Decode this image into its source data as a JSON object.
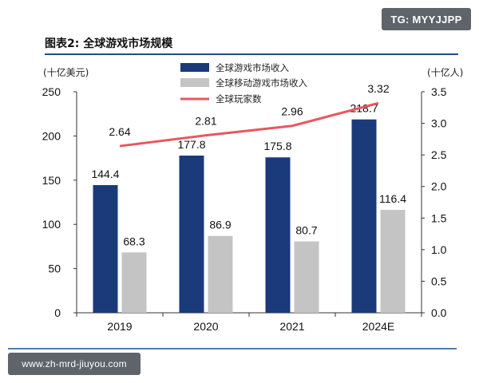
{
  "badge": "TG: MYYJJPP",
  "figure_title": "图表2:  全球游戏市场规模",
  "footer_url": "www.zh-mrd-jiuyou.com",
  "colors": {
    "market_bar": "#1b3a7a",
    "mobile_bar": "#c4c4c4",
    "players_line": "#e8575f",
    "title_rule": "#1f4e8c"
  },
  "chart_data": {
    "type": "bar",
    "title": "全球游戏市场规模",
    "categories": [
      "2019",
      "2020",
      "2021",
      "2024E"
    ],
    "y_left": {
      "unit": "(十亿美元)",
      "ylim": [
        0,
        250
      ],
      "ticks": [
        "0",
        "50",
        "100",
        "150",
        "200",
        "250"
      ]
    },
    "y_right": {
      "unit": "(十亿人)",
      "ylim": [
        0,
        3.5
      ],
      "ticks": [
        "0.0",
        "0.5",
        "1.0",
        "1.5",
        "2.0",
        "2.5",
        "3.0",
        "3.5"
      ]
    },
    "series": [
      {
        "name": "全球游戏市场收入",
        "kind": "bar",
        "axis": "left",
        "values": [
          144.4,
          177.8,
          175.8,
          218.7
        ],
        "labels": [
          "144.4",
          "177.8",
          "175.8",
          "218.7"
        ]
      },
      {
        "name": "全球移动游戏市场收入",
        "kind": "bar",
        "axis": "left",
        "values": [
          68.3,
          86.9,
          80.7,
          116.4
        ],
        "labels": [
          "68.3",
          "86.9",
          "80.7",
          "116.4"
        ]
      },
      {
        "name": "全球玩家数",
        "kind": "line",
        "axis": "right",
        "values": [
          2.64,
          2.81,
          2.96,
          3.32
        ],
        "labels": [
          "2.64",
          "2.81",
          "2.96",
          "3.32"
        ]
      }
    ],
    "legend_position": "top-center",
    "grid": false
  }
}
